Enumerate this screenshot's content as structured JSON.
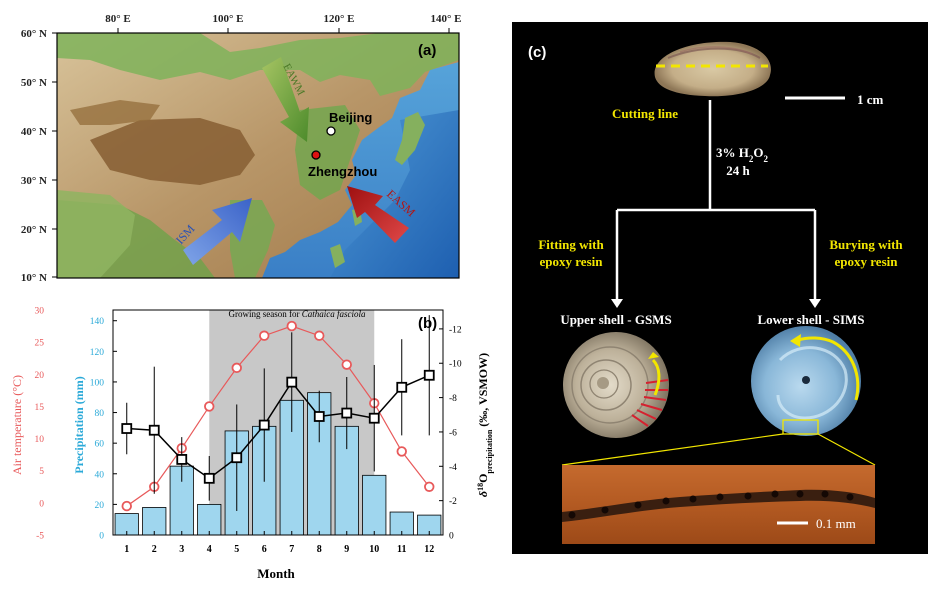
{
  "panel_a": {
    "label": "(a)",
    "lon_ticks": [
      "80° E",
      "100° E",
      "120° E",
      "140° E"
    ],
    "lat_ticks": [
      "60° N",
      "50° N",
      "40° N",
      "30° N",
      "20° N",
      "10° N"
    ],
    "cities": [
      "Beijing",
      "Zhengzhou"
    ],
    "arrows": [
      "EAWM",
      "ISM",
      "EASM"
    ]
  },
  "panel_b": {
    "label": "(b)",
    "growing_season_prefix": "Growing season for ",
    "growing_season_species": "Cathaica fasciola",
    "xlabel": "Month",
    "ylabel_left_temp": "Air temperature (°C)",
    "ylabel_left_precip": "Precipitation (mm)",
    "ylabel_right_main": "δ",
    "ylabel_right_sup": "18",
    "ylabel_right_mid": "O",
    "ylabel_right_sub": "precipitation",
    "ylabel_right_tail": " (‰, VSMOW)",
    "colors": {
      "temperature": "#e8595a",
      "precipitation": "#9fd6ee",
      "precip_axis": "#2aa9d8",
      "d18o": "#000000",
      "season_band": "#c8c8c8"
    }
  },
  "chart_data": {
    "type": "bar",
    "categories": [
      "1",
      "2",
      "3",
      "4",
      "5",
      "6",
      "7",
      "8",
      "9",
      "10",
      "11",
      "12"
    ],
    "x_ticks": [
      "1",
      "2",
      "3",
      "4",
      "5",
      "6",
      "7",
      "8",
      "9",
      "10",
      "11",
      "12"
    ],
    "temp_ticks": [
      "-5",
      "0",
      "5",
      "10",
      "15",
      "20",
      "25",
      "30"
    ],
    "precip_ticks": [
      "0",
      "20",
      "40",
      "60",
      "80",
      "100",
      "120",
      "140"
    ],
    "d18o_ticks": [
      "0",
      "-2",
      "-4",
      "-6",
      "-8",
      "-10",
      "-12"
    ],
    "ylim_temperature": [
      -5,
      30
    ],
    "ylim_precipitation": [
      0,
      147
    ],
    "ylim_d18o": [
      0,
      -13.1
    ],
    "growing_season_months": [
      4,
      10
    ],
    "precipitation": [
      14,
      18,
      45,
      20,
      68,
      71,
      88,
      93,
      71,
      39,
      15,
      13
    ],
    "air_temperature": [
      -0.5,
      2.5,
      8.5,
      15,
      21,
      26,
      27.5,
      26,
      21.5,
      15.5,
      8,
      2.5
    ],
    "d18o": [
      -6.2,
      -6.1,
      -4.4,
      -3.3,
      -4.5,
      -6.4,
      -8.9,
      -6.9,
      -7.1,
      -6.8,
      -8.6,
      -9.3
    ],
    "d18o_error": [
      1.5,
      3.7,
      1.3,
      1.3,
      3.1,
      3.3,
      2.9,
      1.5,
      2.1,
      3.1,
      2.8,
      3.5
    ]
  },
  "panel_c": {
    "label": "(c)",
    "scale_1": "1 cm",
    "cutting_line": "Cutting line",
    "treatment_1": "3% H",
    "treatment_sub": "2",
    "treatment_2": "O",
    "treatment_sub2": "2",
    "treatment_time": "24 h",
    "fitting_1": "Fitting with",
    "fitting_2": "epoxy resin",
    "burying_1": "Burying with",
    "burying_2": "epoxy resin",
    "upper_shell": "Upper shell - GSMS",
    "lower_shell": "Lower shell - SIMS",
    "scale_2": "0.1 mm"
  }
}
